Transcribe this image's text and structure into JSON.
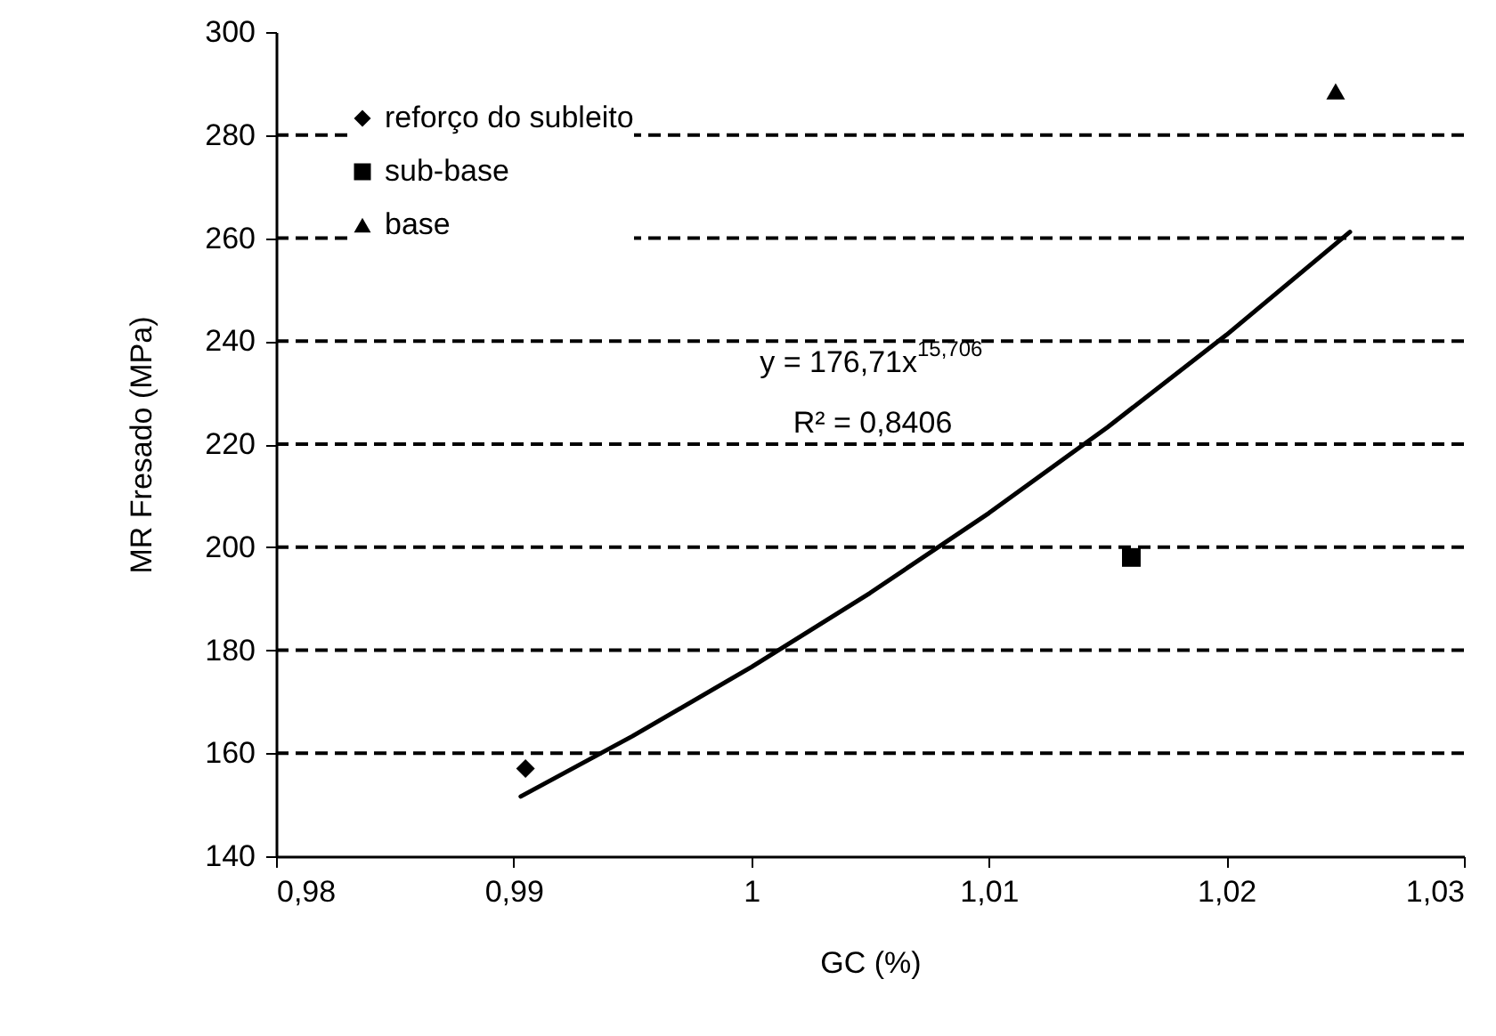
{
  "chart_data": {
    "type": "scatter",
    "xlabel": "GC (%)",
    "ylabel": "MR Fresado (MPa)",
    "xlim": [
      0.98,
      1.03
    ],
    "xticks": [
      {
        "value": 0.98,
        "label": "0,98"
      },
      {
        "value": 0.99,
        "label": "0,99"
      },
      1,
      {
        "value": 1.01,
        "label": "1,01"
      },
      {
        "value": 1.02,
        "label": "1,02"
      },
      {
        "value": 1.03,
        "label": "1,03"
      }
    ],
    "ylim": [
      140,
      300
    ],
    "yticks": [
      140,
      160,
      180,
      200,
      220,
      240,
      260,
      280,
      300
    ],
    "grid": "y",
    "line_style": "dashed",
    "legend": "top left",
    "series": [
      {
        "name": "reforço do subleito",
        "color": "#000000",
        "marker": "diamond",
        "x": [
          0.9905
        ],
        "values": [
          157
        ]
      },
      {
        "name": "sub-base",
        "color": "#000000",
        "marker": "square",
        "x": [
          1.016
        ],
        "values": [
          198
        ]
      },
      {
        "name": "base",
        "color": "#000000",
        "marker": "triangle",
        "x": [
          1.0246
        ],
        "values": [
          288.5
        ]
      },
      {
        "type": "line",
        "color": "#000000",
        "line_style": "solid",
        "marker": "none",
        "x": [
          0.9903,
          0.995,
          1.0,
          1.005,
          1.01,
          1.015,
          1.02,
          1.0252
        ],
        "values": [
          151.6,
          163.3,
          176.7,
          191.1,
          206.6,
          223.3,
          241.2,
          261.2
        ]
      }
    ],
    "annotations": [
      "y = 176,71x$^{15,706}$",
      "R² = 0,8406"
    ]
  }
}
